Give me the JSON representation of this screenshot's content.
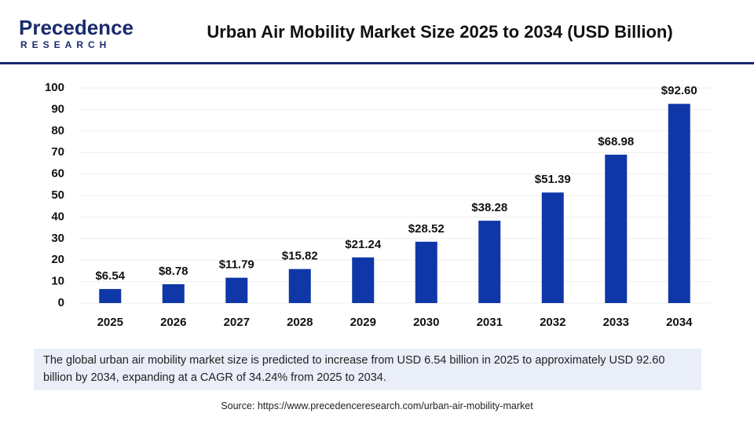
{
  "logo": {
    "name": "Precedence",
    "subtitle": "RESEARCH"
  },
  "chart_data": {
    "type": "bar",
    "title": "Urban Air Mobility Market Size 2025 to 2034 (USD Billion)",
    "categories": [
      "2025",
      "2026",
      "2027",
      "2028",
      "2029",
      "2030",
      "2031",
      "2032",
      "2033",
      "2034"
    ],
    "values": [
      6.54,
      8.78,
      11.79,
      15.82,
      21.24,
      28.52,
      38.28,
      51.39,
      68.98,
      92.6
    ],
    "value_labels": [
      "$6.54",
      "$8.78",
      "$11.79",
      "$15.82",
      "$21.24",
      "$28.52",
      "$38.28",
      "$51.39",
      "$68.98",
      "$92.60"
    ],
    "color": "#0f37a8",
    "ylim": [
      0,
      100
    ],
    "yticks": [
      0,
      10,
      20,
      30,
      40,
      50,
      60,
      70,
      80,
      90,
      100
    ],
    "grid": true
  },
  "description": "The global urban air mobility market size is predicted to increase from USD 6.54 billion in 2025 to approximately USD 92.60 billion by 2034, expanding at a CAGR of 34.24% from 2025 to 2034.",
  "source": "Source: https://www.precedenceresearch.com/urban-air-mobility-market"
}
